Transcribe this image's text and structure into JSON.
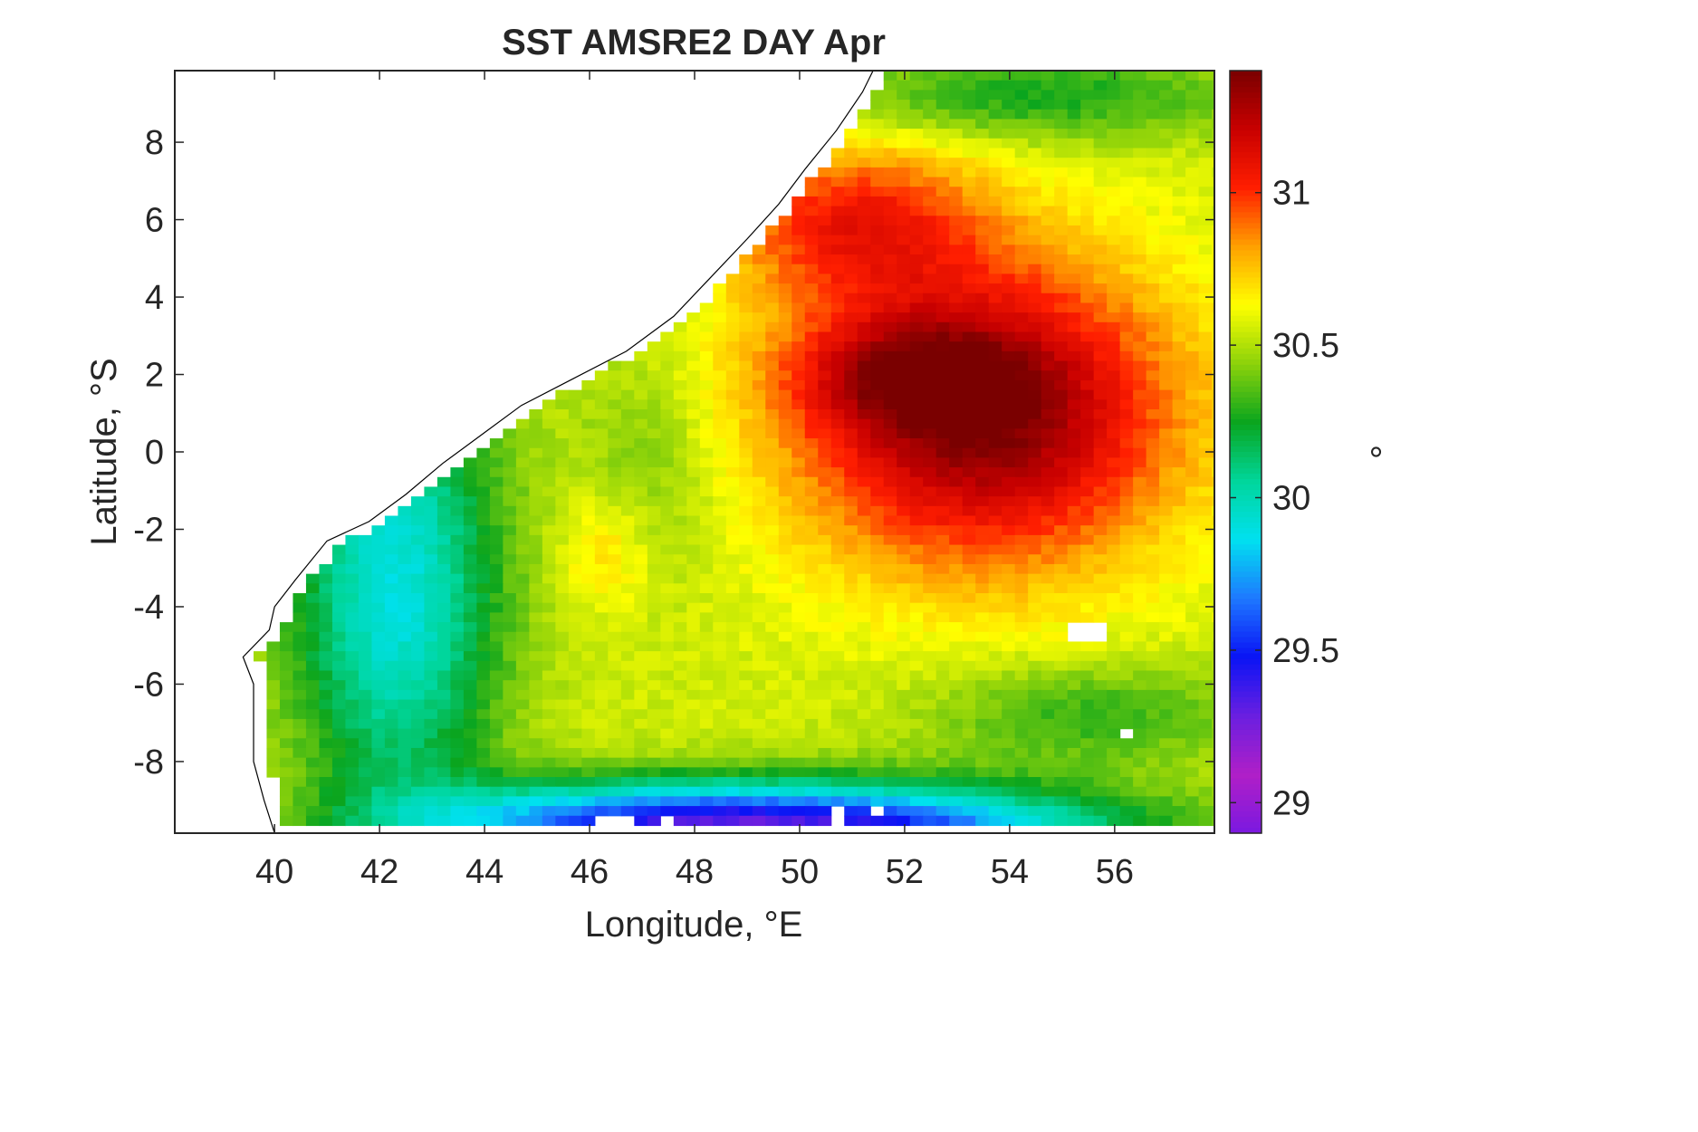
{
  "chart_data": {
    "type": "heatmap",
    "title": "SST AMSRE2 DAY Apr",
    "xlabel": "Longitude, °E",
    "ylabel": "Latitude, °S",
    "colorbar_label": "°",
    "xlim": [
      38.1,
      57.9
    ],
    "ylim": [
      -9.85,
      9.85
    ],
    "xticks": [
      40,
      42,
      44,
      46,
      48,
      50,
      52,
      54,
      56
    ],
    "yticks": [
      8,
      6,
      4,
      2,
      0,
      -2,
      -4,
      -6,
      -8
    ],
    "xtick_labels": [
      "40",
      "42",
      "44",
      "46",
      "48",
      "50",
      "52",
      "54",
      "56"
    ],
    "ytick_labels": [
      "8",
      "6",
      "4",
      "2",
      "0",
      "-2",
      "-4",
      "-6",
      "-8"
    ],
    "clim": [
      28.9,
      31.4
    ],
    "colorbar_ticks": [
      29,
      29.5,
      30,
      30.5,
      31
    ],
    "colorbar_tick_labels": [
      "29",
      "29.5",
      "30",
      "30.5",
      "31"
    ],
    "colormap": [
      "#7a19e0",
      "#b01fc7",
      "#6a1fe0",
      "#0a14f5",
      "#1e78ff",
      "#00e1f0",
      "#00d69b",
      "#0aa51e",
      "#8cd20a",
      "#ffff00",
      "#ffa000",
      "#ff1e00",
      "#c80000",
      "#7a0000"
    ],
    "grid_step_deg": 0.25,
    "coastline": [
      [
        40.0,
        -9.85
      ],
      [
        39.8,
        -9.0
      ],
      [
        39.6,
        -8.0
      ],
      [
        39.6,
        -7.0
      ],
      [
        39.6,
        -6.0
      ],
      [
        39.4,
        -5.3
      ],
      [
        39.9,
        -4.6
      ],
      [
        40.0,
        -4.0
      ],
      [
        40.4,
        -3.3
      ],
      [
        41.0,
        -2.3
      ],
      [
        41.8,
        -1.8
      ],
      [
        42.5,
        -1.1
      ],
      [
        43.2,
        -0.3
      ],
      [
        44.0,
        0.5
      ],
      [
        44.7,
        1.2
      ],
      [
        45.7,
        1.9
      ],
      [
        46.7,
        2.6
      ],
      [
        47.6,
        3.5
      ],
      [
        48.3,
        4.5
      ],
      [
        49.0,
        5.5
      ],
      [
        49.6,
        6.4
      ],
      [
        50.1,
        7.3
      ],
      [
        50.7,
        8.3
      ],
      [
        51.2,
        9.3
      ],
      [
        51.4,
        9.85
      ]
    ],
    "no_data_areas": [
      {
        "name": "coast",
        "lon": [
          38.1,
          57.9
        ],
        "lat": [
          -9.85,
          9.85
        ]
      },
      {
        "name": "island",
        "lon": [
          55.2,
          55.9
        ],
        "lat": [
          -4.9,
          -4.35
        ]
      },
      {
        "name": "island",
        "lon": [
          46.1,
          46.85
        ],
        "lat": [
          -9.85,
          -9.3
        ]
      },
      {
        "name": "island",
        "lon": [
          47.3,
          47.7
        ],
        "lat": [
          -9.85,
          -9.5
        ]
      },
      {
        "name": "island",
        "lon": [
          50.5,
          50.95
        ],
        "lat": [
          -9.85,
          -9.2
        ]
      },
      {
        "name": "island",
        "lon": [
          51.25,
          51.5
        ],
        "lat": [
          -9.45,
          -9.2
        ]
      },
      {
        "name": "island",
        "lon": [
          56.0,
          56.3
        ],
        "lat": [
          -7.45,
          -7.2
        ]
      }
    ],
    "field_summary": [
      {
        "region": "warm core",
        "center_lon": 52.2,
        "center_lat": 1.8,
        "sst": 31.4
      },
      {
        "region": "warm pool",
        "center_lon": 53.0,
        "center_lat": 0.5,
        "sst": 31.2
      },
      {
        "region": "northern green patch",
        "center_lon": 54.5,
        "center_lat": 9.0,
        "sst": 30.45
      },
      {
        "region": "western cool band",
        "center_lon": 42.5,
        "center_lat": -3.5,
        "sst": 30.0
      },
      {
        "region": "southern cold tongue",
        "center_lon": 51.0,
        "center_lat": -9.6,
        "sst": 29.35
      },
      {
        "region": "yellow front",
        "center_lon": 46.3,
        "center_lat": -2.5,
        "sst": 30.7
      }
    ]
  }
}
